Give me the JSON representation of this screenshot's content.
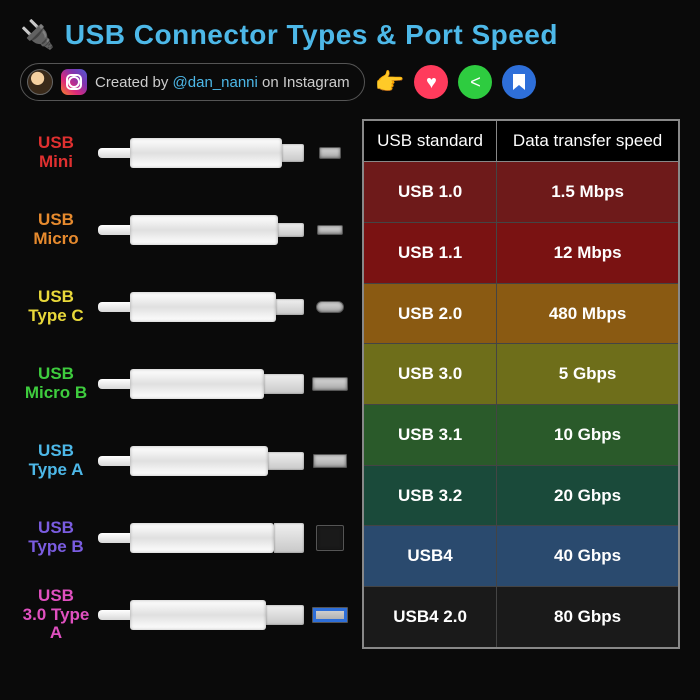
{
  "title": "USB Connector Types & Port Speed",
  "title_color": "#4db8e8",
  "credit": {
    "prefix": "Created by ",
    "handle": "@dan_nanni",
    "suffix": " on Instagram"
  },
  "social": {
    "point_emoji": "👉",
    "heart": "♥",
    "share": "⮂",
    "bookmark": "🔖"
  },
  "connectors": [
    {
      "name": "USB Mini",
      "color": "#e03030",
      "tip_w": 22,
      "tip_h": 18,
      "port_w": 22,
      "port_h": 12,
      "port_radius": "2px"
    },
    {
      "name": "USB Micro",
      "color": "#e68a2e",
      "tip_w": 26,
      "tip_h": 14,
      "port_w": 26,
      "port_h": 10,
      "port_radius": "2px"
    },
    {
      "name": "USB Type C",
      "color": "#e8d83a",
      "tip_w": 28,
      "tip_h": 16,
      "port_w": 28,
      "port_h": 12,
      "port_radius": "6px"
    },
    {
      "name": "USB Micro B",
      "color": "#3ecc3e",
      "tip_w": 40,
      "tip_h": 20,
      "port_w": 36,
      "port_h": 14,
      "port_radius": "2px"
    },
    {
      "name": "USB Type A",
      "color": "#4db8e8",
      "tip_w": 36,
      "tip_h": 18,
      "port_w": 34,
      "port_h": 14,
      "port_radius": "1px"
    },
    {
      "name": "USB Type B",
      "color": "#7a5ce0",
      "tip_w": 30,
      "tip_h": 30,
      "port_w": 28,
      "port_h": 26,
      "port_radius": "2px",
      "port_bg": "#1a1a1a"
    },
    {
      "name": "USB 3.0 Type A",
      "color": "#e050c0",
      "tip_w": 38,
      "tip_h": 20,
      "port_w": 36,
      "port_h": 16,
      "port_radius": "1px",
      "port_inner": "#2e6fd9"
    }
  ],
  "table": {
    "headers": [
      "USB standard",
      "Data transfer speed"
    ],
    "rows": [
      {
        "standard": "USB 1.0",
        "speed": "1.5 Mbps",
        "bg": "#6e1a1a"
      },
      {
        "standard": "USB 1.1",
        "speed": "12 Mbps",
        "bg": "#7a1212"
      },
      {
        "standard": "USB 2.0",
        "speed": "480 Mbps",
        "bg": "#8a5a12"
      },
      {
        "standard": "USB 3.0",
        "speed": "5 Gbps",
        "bg": "#6e6e1a"
      },
      {
        "standard": "USB 3.1",
        "speed": "10 Gbps",
        "bg": "#2a5a2a"
      },
      {
        "standard": "USB 3.2",
        "speed": "20 Gbps",
        "bg": "#1a4a3a"
      },
      {
        "standard": "USB4",
        "speed": "40 Gbps",
        "bg": "#2a4a6e"
      },
      {
        "standard": "USB4 2.0",
        "speed": "80 Gbps",
        "bg": "#1a1a1a"
      }
    ]
  }
}
